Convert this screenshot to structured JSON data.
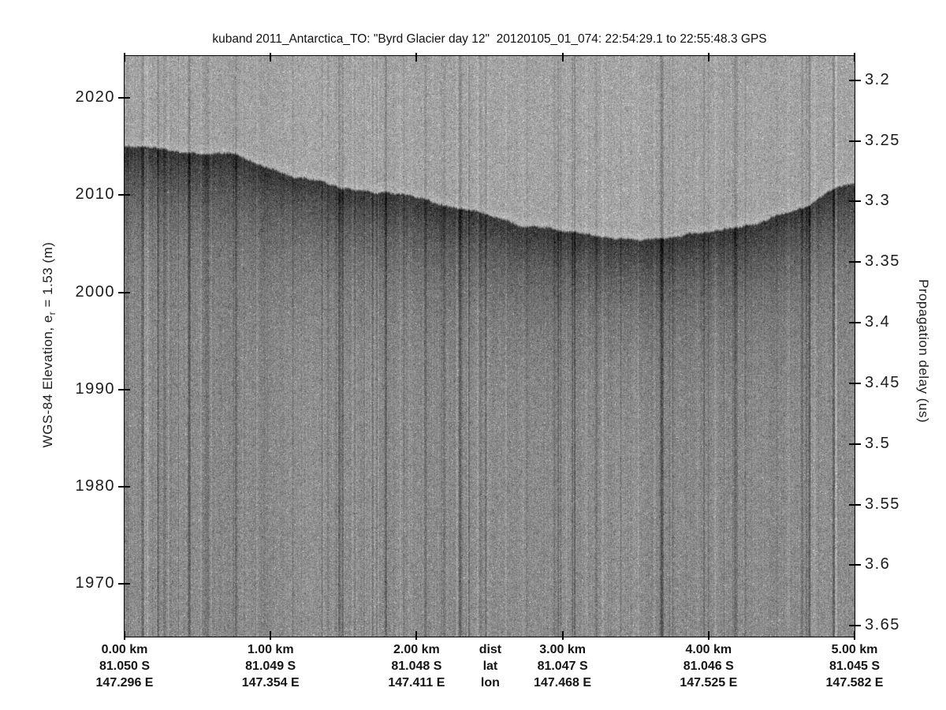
{
  "figure": {
    "title": "kuband 2011_Antarctica_TO: \"Byrd Glacier day 12\"  20120105_01_074: 22:54:29.1 to 22:55:48.3 GPS",
    "background": "#ffffff"
  },
  "chart_data": {
    "type": "heatmap",
    "title": "kuband 2011_Antarctica_TO: \"Byrd Glacier day 12\"  20120105_01_074: 22:54:29.1 to 22:55:48.3 GPS",
    "grid": false,
    "legend": null,
    "left_axis": {
      "label": "WGS-84 Elevation, e_r = 1.53 (m)",
      "label_parts": {
        "pre": "WGS-84 Elevation, e",
        "sub": "r",
        "post": " = 1.53 (m)"
      },
      "tick_labels": [
        "2020",
        "2010",
        "2000",
        "1990",
        "1980",
        "1970"
      ],
      "tick_values": [
        2020,
        2010,
        2000,
        1990,
        1980,
        1970
      ],
      "range": [
        1964.6,
        2024.3
      ],
      "units": "m"
    },
    "right_axis": {
      "label": "Propagation delay (us)",
      "tick_labels": [
        "3.2",
        "3.25",
        "3.3",
        "3.35",
        "3.4",
        "3.45",
        "3.5",
        "3.55",
        "3.6",
        "3.65"
      ],
      "tick_values": [
        3.2,
        3.25,
        3.3,
        3.35,
        3.4,
        3.45,
        3.5,
        3.55,
        3.6,
        3.65
      ],
      "range": [
        3.18,
        3.659
      ],
      "units": "us"
    },
    "x_axis": {
      "range_km": [
        0,
        5
      ],
      "tick_km": [
        0,
        1,
        2,
        3,
        4,
        5
      ],
      "columns": [
        {
          "km": 0,
          "dist": "0.00 km",
          "lat": "81.050 S",
          "lon": "147.296 E"
        },
        {
          "km": 1,
          "dist": "1.00 km",
          "lat": "81.049 S",
          "lon": "147.354 E"
        },
        {
          "km": 2,
          "dist": "2.00 km",
          "lat": "81.048 S",
          "lon": "147.411 E"
        },
        {
          "km": 3,
          "dist": "3.00 km",
          "lat": "81.047 S",
          "lon": "147.468 E"
        },
        {
          "km": 4,
          "dist": "4.00 km",
          "lat": "81.046 S",
          "lon": "147.525 E"
        },
        {
          "km": 5,
          "dist": "5.00 km",
          "lat": "81.045 S",
          "lon": "147.582 E"
        }
      ],
      "key_column": {
        "km": 2.505,
        "dist": "dist",
        "lat": "lat",
        "lon": "lon"
      }
    },
    "surface_profile": {
      "description": "Glacier surface echo (top of dark return band) read from the echogram",
      "km": [
        0.0,
        0.4,
        0.75,
        0.85,
        1.0,
        1.1,
        1.3,
        1.5,
        1.7,
        1.78,
        1.88,
        1.95,
        2.2,
        2.35,
        2.5,
        2.7,
        2.9,
        3.1,
        3.3,
        3.55,
        3.75,
        3.95,
        4.2,
        4.35,
        4.55,
        4.7,
        4.85,
        5.0
      ],
      "elevation_m": [
        2014.9,
        2014.6,
        2014.2,
        2013.6,
        2012.7,
        2012.2,
        2011.4,
        2010.6,
        2010.25,
        2010.45,
        2010.1,
        2009.9,
        2009.1,
        2008.6,
        2007.9,
        2007.0,
        2006.7,
        2006.3,
        2005.8,
        2005.4,
        2005.5,
        2006.1,
        2006.7,
        2007.3,
        2008.3,
        2009.2,
        2010.4,
        2010.8
      ]
    },
    "colors": {
      "axis": "#000000",
      "text": "#1a1a1a",
      "noise_above_surface": "#a3a3a3",
      "bright_surface_band": "#b4b4b4",
      "surface_return_dark": "#3a3a3a",
      "noise_below_deep": "#8c8c8c"
    }
  }
}
